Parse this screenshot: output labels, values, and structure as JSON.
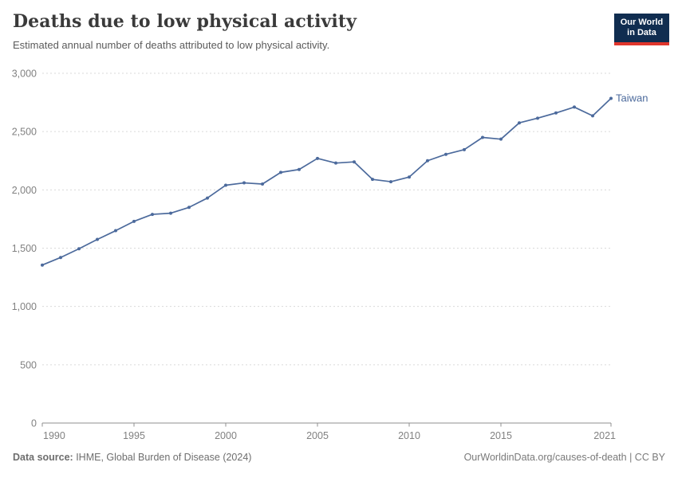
{
  "header": {
    "logo": {
      "line1": "Our World",
      "line2": "in Data"
    }
  },
  "footer": {
    "datasource_label": "Data source:",
    "datasource_text": " IHME, Global Burden of Disease (2024)",
    "rights": "OurWorldinData.org/causes-of-death | CC BY"
  },
  "colors": {
    "line": "#4C6A9C",
    "series_label": "#4C6A9C",
    "grid": "#DADADA",
    "axis": "#8F8F8F",
    "tick_text": "#818181",
    "logo_bg": "#102D50",
    "logo_red": "#E0362C"
  },
  "chart_data": {
    "type": "line",
    "title": "Deaths due to low physical activity",
    "subtitle": "Estimated annual number of deaths attributed to low physical activity.",
    "grid": "horizontal-dashed",
    "legend_position": "end-of-line-label",
    "xlim": [
      1990,
      2021
    ],
    "ylim": [
      0,
      3000
    ],
    "yticks": [
      0,
      500,
      1000,
      1500,
      2000,
      2500,
      3000
    ],
    "ytick_labels": [
      "0",
      "500",
      "1,000",
      "1,500",
      "2,000",
      "2,500",
      "3,000"
    ],
    "xticks": [
      1990,
      1995,
      2000,
      2005,
      2010,
      2015,
      2021
    ],
    "xtick_labels": [
      "1990",
      "1995",
      "2000",
      "2005",
      "2010",
      "2015",
      "2021"
    ],
    "series": [
      {
        "name": "Taiwan",
        "x": [
          1990,
          1991,
          1992,
          1993,
          1994,
          1995,
          1996,
          1997,
          1998,
          1999,
          2000,
          2001,
          2002,
          2003,
          2004,
          2005,
          2006,
          2007,
          2008,
          2009,
          2010,
          2011,
          2012,
          2013,
          2014,
          2015,
          2016,
          2017,
          2018,
          2019,
          2020,
          2021
        ],
        "values": [
          1355,
          1420,
          1495,
          1575,
          1650,
          1730,
          1790,
          1800,
          1850,
          1930,
          2040,
          2060,
          2050,
          2150,
          2175,
          2270,
          2230,
          2240,
          2090,
          2070,
          2110,
          2250,
          2305,
          2345,
          2450,
          2435,
          2575,
          2615,
          2660,
          2710,
          2635,
          2785
        ]
      }
    ]
  }
}
